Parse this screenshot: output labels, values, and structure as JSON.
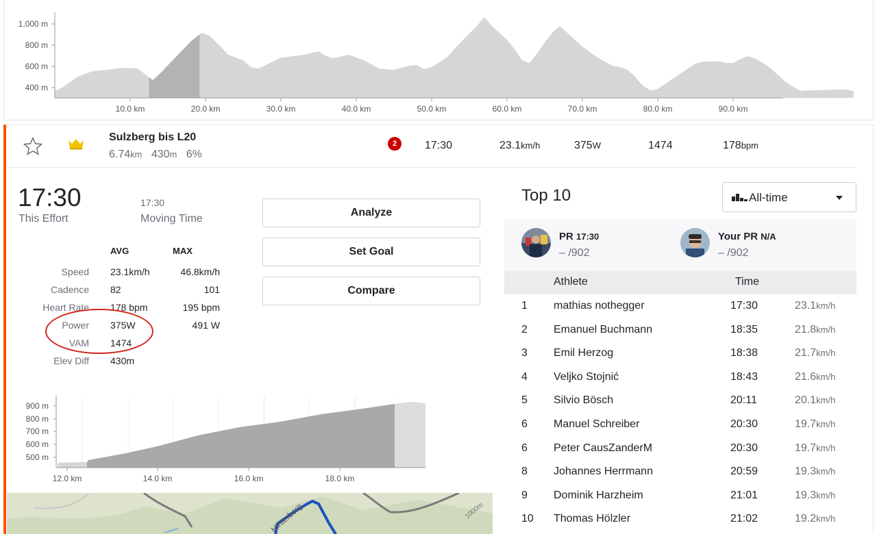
{
  "top_profile": {
    "y_ticks": [
      "1,000 m",
      "800 m",
      "600 m",
      "400 m"
    ],
    "x_ticks": [
      "10.0 km",
      "20.0 km",
      "30.0 km",
      "40.0 km",
      "50.0 km",
      "60.0 km",
      "70.0 km",
      "80.0 km",
      "90.0 km"
    ],
    "highlight_range_km": [
      12.5,
      19.2
    ],
    "fill_color": "#d6d6d6",
    "highlight_color": "#b3b3b3"
  },
  "segment": {
    "name": "Sulzberg bis L20",
    "distance": "6.74",
    "distance_unit": "km",
    "elevation": "430",
    "elevation_unit": "m",
    "grade": "6%",
    "rank": "2",
    "time": "17:30",
    "speed": "23.1",
    "speed_unit": "km/h",
    "power": "375",
    "power_unit": "W",
    "vam": "1474",
    "heart_rate": "178",
    "heart_rate_unit": "bpm",
    "star_icon": "star-outline-icon",
    "crown_icon": "crown-icon",
    "crown_color": "#f2c200"
  },
  "effort": {
    "time": "17:30",
    "time_label": "This Effort",
    "moving_time": "17:30",
    "moving_label": "Moving Time"
  },
  "buttons": {
    "analyze": "Analyze",
    "set_goal": "Set Goal",
    "compare": "Compare"
  },
  "stats": {
    "avg_header": "AVG",
    "max_header": "MAX",
    "rows": [
      {
        "label": "Speed",
        "avg": "23.1km/h",
        "max": "46.8km/h"
      },
      {
        "label": "Cadence",
        "avg": "82",
        "max": "101"
      },
      {
        "label": "Heart Rate",
        "avg": "178 bpm",
        "max": "195 bpm"
      },
      {
        "label": "Power",
        "avg": "375W",
        "max": "491 W"
      },
      {
        "label": "VAM",
        "avg": "1474",
        "max": ""
      },
      {
        "label": "Elev Diff",
        "avg": "430m",
        "max": ""
      }
    ]
  },
  "mini_profile": {
    "y_ticks": [
      "900 m",
      "800 m",
      "700 m",
      "600 m",
      "500 m"
    ],
    "x_ticks": [
      "12.0 km",
      "14.0 km",
      "16.0 km",
      "18.0 km"
    ],
    "fill_color": "#a9a9a9"
  },
  "map": {
    "labels": [
      "Hinterberg",
      "1000m"
    ],
    "route_color": "#1f4fbf"
  },
  "leaderboard": {
    "title": "Top 10",
    "filter": "All-time",
    "filter_icon": "bar-chart-icon",
    "pr": {
      "label": "PR",
      "time": "17:30",
      "rank": "– /902"
    },
    "your_pr": {
      "label": "Your PR",
      "time": "N/A",
      "rank": "– /902"
    },
    "columns": {
      "athlete": "Athlete",
      "time": "Time"
    },
    "rows": [
      {
        "rank": "1",
        "athlete": "mathias nothegger",
        "time": "17:30",
        "speed": "23.1",
        "unit": "km/h"
      },
      {
        "rank": "2",
        "athlete": "Emanuel Buchmann",
        "time": "18:35",
        "speed": "21.8",
        "unit": "km/h"
      },
      {
        "rank": "3",
        "athlete": "Emil Herzog",
        "time": "18:38",
        "speed": "21.7",
        "unit": "km/h"
      },
      {
        "rank": "4",
        "athlete": "Veljko Stojnić",
        "time": "18:43",
        "speed": "21.6",
        "unit": "km/h"
      },
      {
        "rank": "5",
        "athlete": "Silvio Bösch",
        "time": "20:11",
        "speed": "20.1",
        "unit": "km/h"
      },
      {
        "rank": "6",
        "athlete": "Manuel Schreiber",
        "time": "20:30",
        "speed": "19.7",
        "unit": "km/h"
      },
      {
        "rank": "6",
        "athlete": "Peter CausZanderM",
        "time": "20:30",
        "speed": "19.7",
        "unit": "km/h"
      },
      {
        "rank": "8",
        "athlete": "Johannes Herrmann",
        "time": "20:59",
        "speed": "19.3",
        "unit": "km/h"
      },
      {
        "rank": "9",
        "athlete": "Dominik Harzheim",
        "time": "21:01",
        "speed": "19.3",
        "unit": "km/h"
      },
      {
        "rank": "10",
        "athlete": "Thomas Hölzler",
        "time": "21:02",
        "speed": "19.2",
        "unit": "km/h"
      }
    ]
  },
  "annotation": {
    "color": "#d0281c"
  }
}
